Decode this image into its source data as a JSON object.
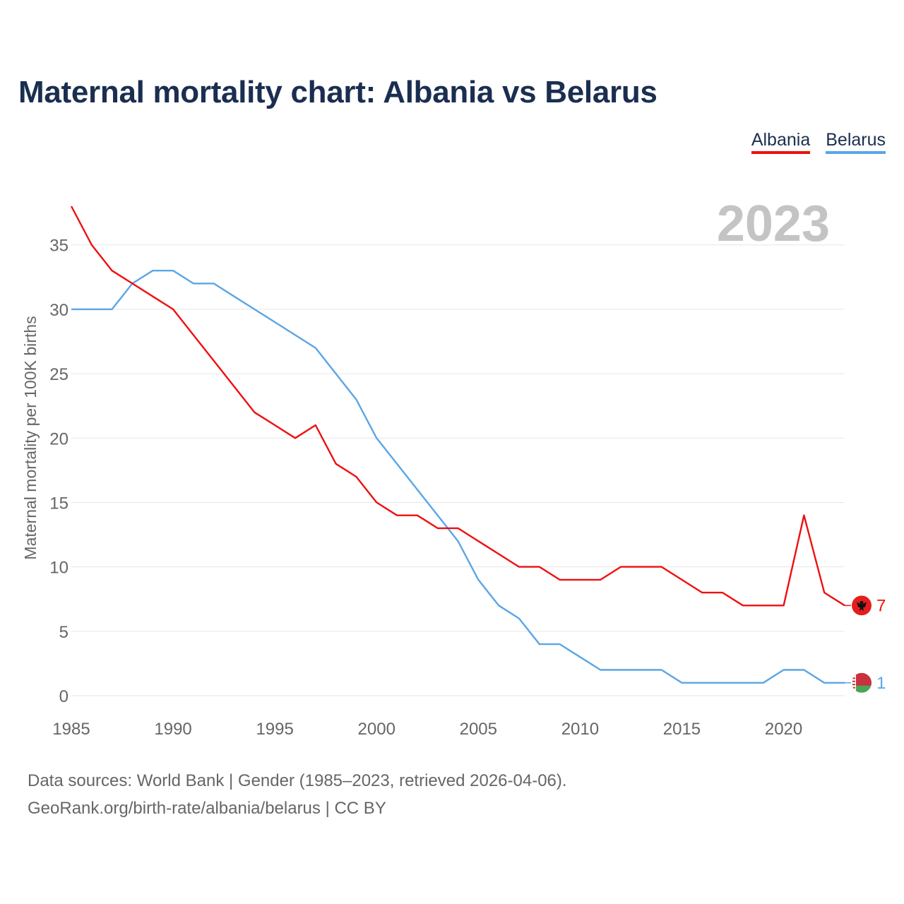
{
  "title": "Maternal mortality chart: Albania vs Belarus",
  "legend": {
    "albania": "Albania",
    "belarus": "Belarus"
  },
  "year_watermark": "2023",
  "source": {
    "line1": "Data sources: World Bank | Gender (1985–2023, retrieved 2026-04-06).",
    "line2": "GeoRank.org/birth-rate/albania/belarus | CC BY"
  },
  "colors": {
    "albania": "#ef0f10",
    "belarus": "#5aa6e6",
    "title": "#1a2e50",
    "grid": "#e6e6e6",
    "watermark": "#c4c4c4"
  },
  "chart_data": {
    "type": "line",
    "title": "Maternal mortality chart: Albania vs Belarus",
    "xlabel": "",
    "ylabel": "Maternal mortality per 100K births",
    "xlim": [
      1985,
      2023
    ],
    "ylim": [
      0,
      38
    ],
    "x_ticks": [
      1985,
      1990,
      1995,
      2000,
      2005,
      2010,
      2015,
      2020
    ],
    "y_ticks": [
      0,
      5,
      10,
      15,
      20,
      25,
      30,
      35
    ],
    "grid": true,
    "legend_position": "top-right",
    "x": [
      1985,
      1986,
      1987,
      1988,
      1989,
      1990,
      1991,
      1992,
      1993,
      1994,
      1995,
      1996,
      1997,
      1998,
      1999,
      2000,
      2001,
      2002,
      2003,
      2004,
      2005,
      2006,
      2007,
      2008,
      2009,
      2010,
      2011,
      2012,
      2013,
      2014,
      2015,
      2016,
      2017,
      2018,
      2019,
      2020,
      2021,
      2022,
      2023
    ],
    "series": [
      {
        "name": "Albania",
        "color": "#ef0f10",
        "end_label": "7",
        "flag": "albania-flag",
        "values": [
          38,
          35,
          33,
          32,
          31,
          30,
          28,
          26,
          24,
          22,
          21,
          20,
          21,
          18,
          17,
          15,
          14,
          14,
          13,
          13,
          12,
          11,
          10,
          10,
          9,
          9,
          9,
          10,
          10,
          10,
          9,
          8,
          8,
          7,
          7,
          7,
          14,
          8,
          7
        ]
      },
      {
        "name": "Belarus",
        "color": "#5aa6e6",
        "end_label": "1",
        "flag": "belarus-flag",
        "values": [
          30,
          30,
          30,
          32,
          33,
          33,
          32,
          32,
          31,
          30,
          29,
          28,
          27,
          25,
          23,
          20,
          18,
          16,
          14,
          12,
          9,
          7,
          6,
          4,
          4,
          3,
          2,
          2,
          2,
          2,
          1,
          1,
          1,
          1,
          1,
          2,
          2,
          1,
          1
        ]
      }
    ]
  }
}
